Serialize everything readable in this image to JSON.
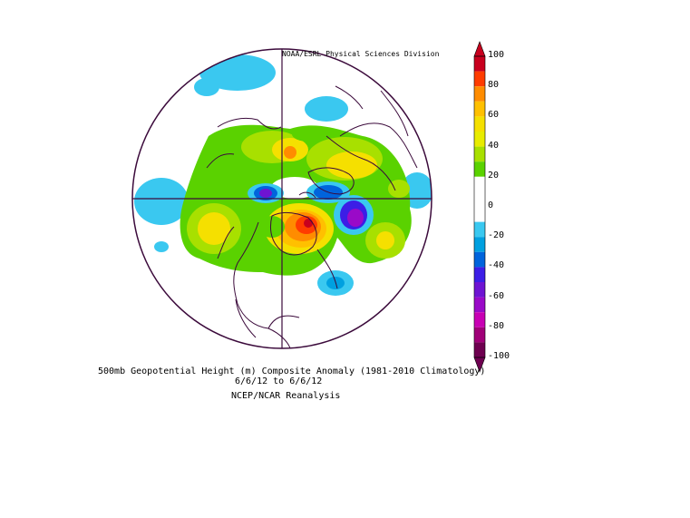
{
  "map": {
    "credit": "NOAA/ESRL Physical Sciences Division",
    "title": "500mb Geopotential Height (m) Composite Anomaly (1981-2010 Climatology)",
    "date_range": "6/6/12  to 6/6/12",
    "source": "NCEP/NCAR Reanalysis",
    "projection": "north polar stereographic",
    "boundary_color": "#3b0a3b"
  },
  "colorbar": {
    "labels": [
      "100",
      "80",
      "60",
      "40",
      "20",
      "0",
      "-20",
      "-40",
      "-60",
      "-80",
      "-100"
    ],
    "bins": [
      {
        "min": 90,
        "max": 100,
        "color": "#c8001e"
      },
      {
        "min": 80,
        "max": 90,
        "color": "#ff3c00"
      },
      {
        "min": 70,
        "max": 80,
        "color": "#ff8c00"
      },
      {
        "min": 60,
        "max": 70,
        "color": "#ffc000"
      },
      {
        "min": 50,
        "max": 60,
        "color": "#f5e000"
      },
      {
        "min": 40,
        "max": 50,
        "color": "#e8ec00"
      },
      {
        "min": 30,
        "max": 40,
        "color": "#a8e000"
      },
      {
        "min": 20,
        "max": 30,
        "color": "#5ad200"
      },
      {
        "min": 10,
        "max": 20,
        "color": "#ffffff"
      },
      {
        "min": -10,
        "max": 10,
        "color": "#ffffff"
      },
      {
        "min": -20,
        "max": -10,
        "color": "#3ac8f0"
      },
      {
        "min": -30,
        "max": -20,
        "color": "#00a0e0"
      },
      {
        "min": -40,
        "max": -30,
        "color": "#0064dc"
      },
      {
        "min": -50,
        "max": -40,
        "color": "#3c1ee6"
      },
      {
        "min": -60,
        "max": -50,
        "color": "#6e14d2"
      },
      {
        "min": -70,
        "max": -60,
        "color": "#9a0ac8"
      },
      {
        "min": -80,
        "max": -70,
        "color": "#c800b4"
      },
      {
        "min": -90,
        "max": -80,
        "color": "#a00078"
      },
      {
        "min": -100,
        "max": -90,
        "color": "#6e0050"
      }
    ]
  }
}
